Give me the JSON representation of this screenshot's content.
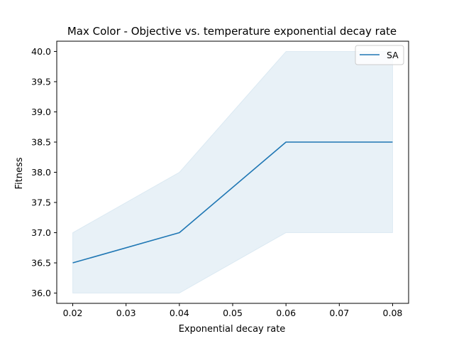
{
  "chart_data": {
    "type": "line",
    "title": "Max Color - Objective vs. temperature exponential decay rate",
    "xlabel": "Exponential decay rate",
    "ylabel": "Fitness",
    "xlim": [
      0.017,
      0.083
    ],
    "ylim": [
      35.83,
      40.17
    ],
    "x_ticks": [
      0.02,
      0.03,
      0.04,
      0.05,
      0.06,
      0.07,
      0.08
    ],
    "x_tick_labels": [
      "0.02",
      "0.03",
      "0.04",
      "0.05",
      "0.06",
      "0.07",
      "0.08"
    ],
    "y_ticks": [
      36.0,
      36.5,
      37.0,
      37.5,
      38.0,
      38.5,
      39.0,
      39.5,
      40.0
    ],
    "y_tick_labels": [
      "36.0",
      "36.5",
      "37.0",
      "37.5",
      "38.0",
      "38.5",
      "39.0",
      "39.5",
      "40.0"
    ],
    "grid": false,
    "legend_position": "top-right",
    "series": [
      {
        "name": "SA",
        "color": "#1f77b4",
        "x": [
          0.02,
          0.04,
          0.06,
          0.08
        ],
        "values": [
          36.5,
          37.0,
          38.5,
          38.5
        ],
        "band_lower": [
          36.0,
          36.0,
          37.0,
          37.0
        ],
        "band_upper": [
          37.0,
          38.0,
          40.0,
          40.0
        ]
      }
    ]
  }
}
